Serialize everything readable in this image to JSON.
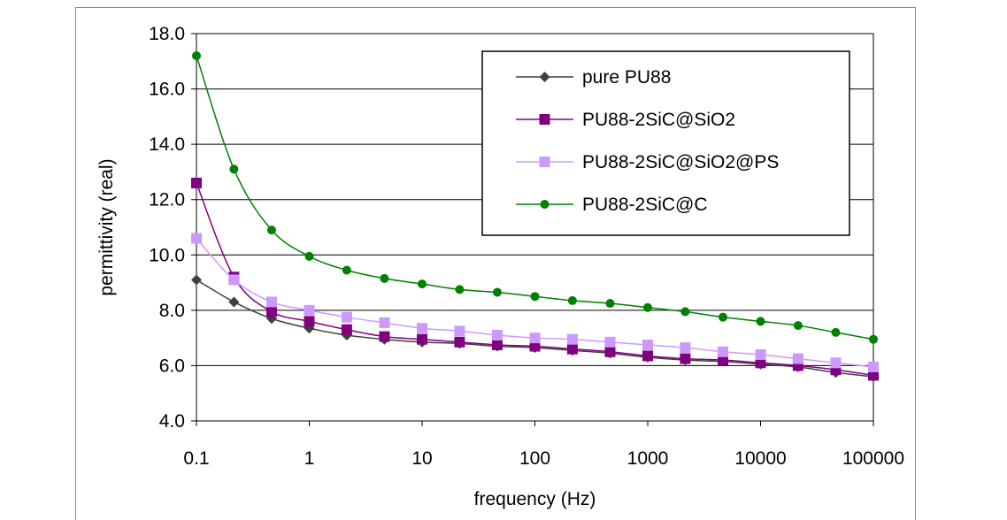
{
  "chart_data": {
    "type": "line",
    "title": "",
    "xlabel": "frequency (Hz)",
    "ylabel": "permittivity (real)",
    "x_scale": "log",
    "xlim": [
      0.1,
      100000
    ],
    "ylim": [
      4.0,
      18.0
    ],
    "y_ticks": [
      "4.0",
      "6.0",
      "8.0",
      "10.0",
      "12.0",
      "14.0",
      "16.0",
      "18.0"
    ],
    "x_ticks": [
      "0.1",
      "1",
      "10",
      "100",
      "1000",
      "10000",
      "100000"
    ],
    "grid": true,
    "legend_position": "top-right",
    "x": [
      0.1,
      0.215,
      0.464,
      1,
      2.15,
      4.64,
      10,
      21.5,
      46.4,
      100,
      215,
      464,
      1000,
      2150,
      4640,
      10000,
      21500,
      46400,
      100000
    ],
    "series": [
      {
        "name": "pure PU88",
        "color": "#404040",
        "marker": "diamond",
        "values": [
          9.1,
          8.3,
          7.7,
          7.35,
          7.1,
          6.95,
          6.85,
          6.8,
          6.7,
          6.65,
          6.55,
          6.45,
          6.3,
          6.2,
          6.15,
          6.05,
          5.95,
          5.75,
          5.6
        ]
      },
      {
        "name": "PU88-2SiC@SiO2",
        "color": "#800080",
        "marker": "square",
        "values": [
          12.6,
          9.2,
          7.95,
          7.6,
          7.3,
          7.05,
          6.95,
          6.85,
          6.75,
          6.7,
          6.6,
          6.5,
          6.35,
          6.25,
          6.2,
          6.1,
          6.0,
          5.85,
          5.65
        ]
      },
      {
        "name": "PU88-2SiC@SiO2@PS",
        "color": "#cc99ff",
        "marker": "square",
        "values": [
          10.6,
          9.1,
          8.3,
          8.0,
          7.75,
          7.55,
          7.35,
          7.25,
          7.1,
          7.0,
          6.95,
          6.85,
          6.75,
          6.65,
          6.5,
          6.4,
          6.25,
          6.1,
          5.95
        ]
      },
      {
        "name": "PU88-2SiC@C",
        "color": "#008000",
        "marker": "circle",
        "values": [
          17.2,
          13.1,
          10.9,
          9.95,
          9.45,
          9.15,
          8.95,
          8.75,
          8.65,
          8.5,
          8.35,
          8.25,
          8.1,
          7.95,
          7.75,
          7.6,
          7.45,
          7.2,
          6.95
        ]
      }
    ]
  }
}
